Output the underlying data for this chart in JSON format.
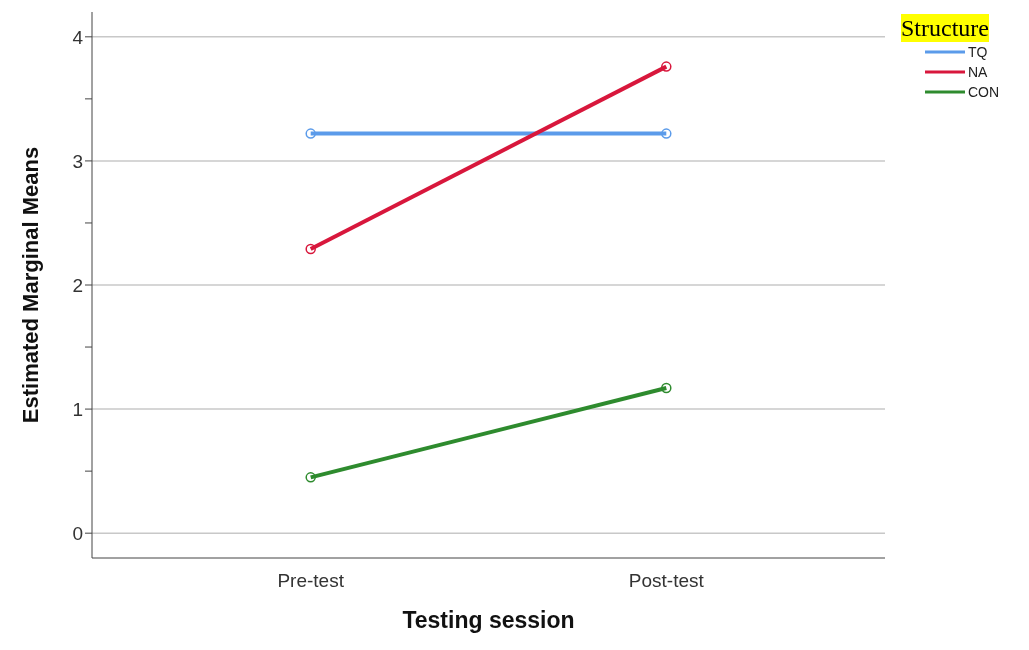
{
  "chart_data": {
    "type": "line",
    "xlabel": "Testing session",
    "ylabel": "Estimated Marginal Means",
    "legend_title": "Structure",
    "legend": "top right",
    "marker": "circle",
    "grid": "y",
    "categories": [
      "Pre-test",
      "Post-test"
    ],
    "series": [
      {
        "name": "TQ",
        "color": "#5b9bea",
        "values": [
          3.22,
          3.22
        ]
      },
      {
        "name": "NA",
        "color": "#d8173c",
        "values": [
          2.29,
          3.76
        ]
      },
      {
        "name": "CON",
        "color": "#2e8b2e",
        "values": [
          0.45,
          1.17
        ]
      }
    ],
    "ylim": [
      -0.2,
      4.2
    ],
    "yticks": [
      0,
      {
        "value": 0.5,
        "label": null
      },
      1,
      {
        "value": 1.5,
        "label": null
      },
      2,
      {
        "value": 2.5,
        "label": null
      },
      3,
      {
        "value": 3.5,
        "label": null
      },
      4
    ]
  }
}
